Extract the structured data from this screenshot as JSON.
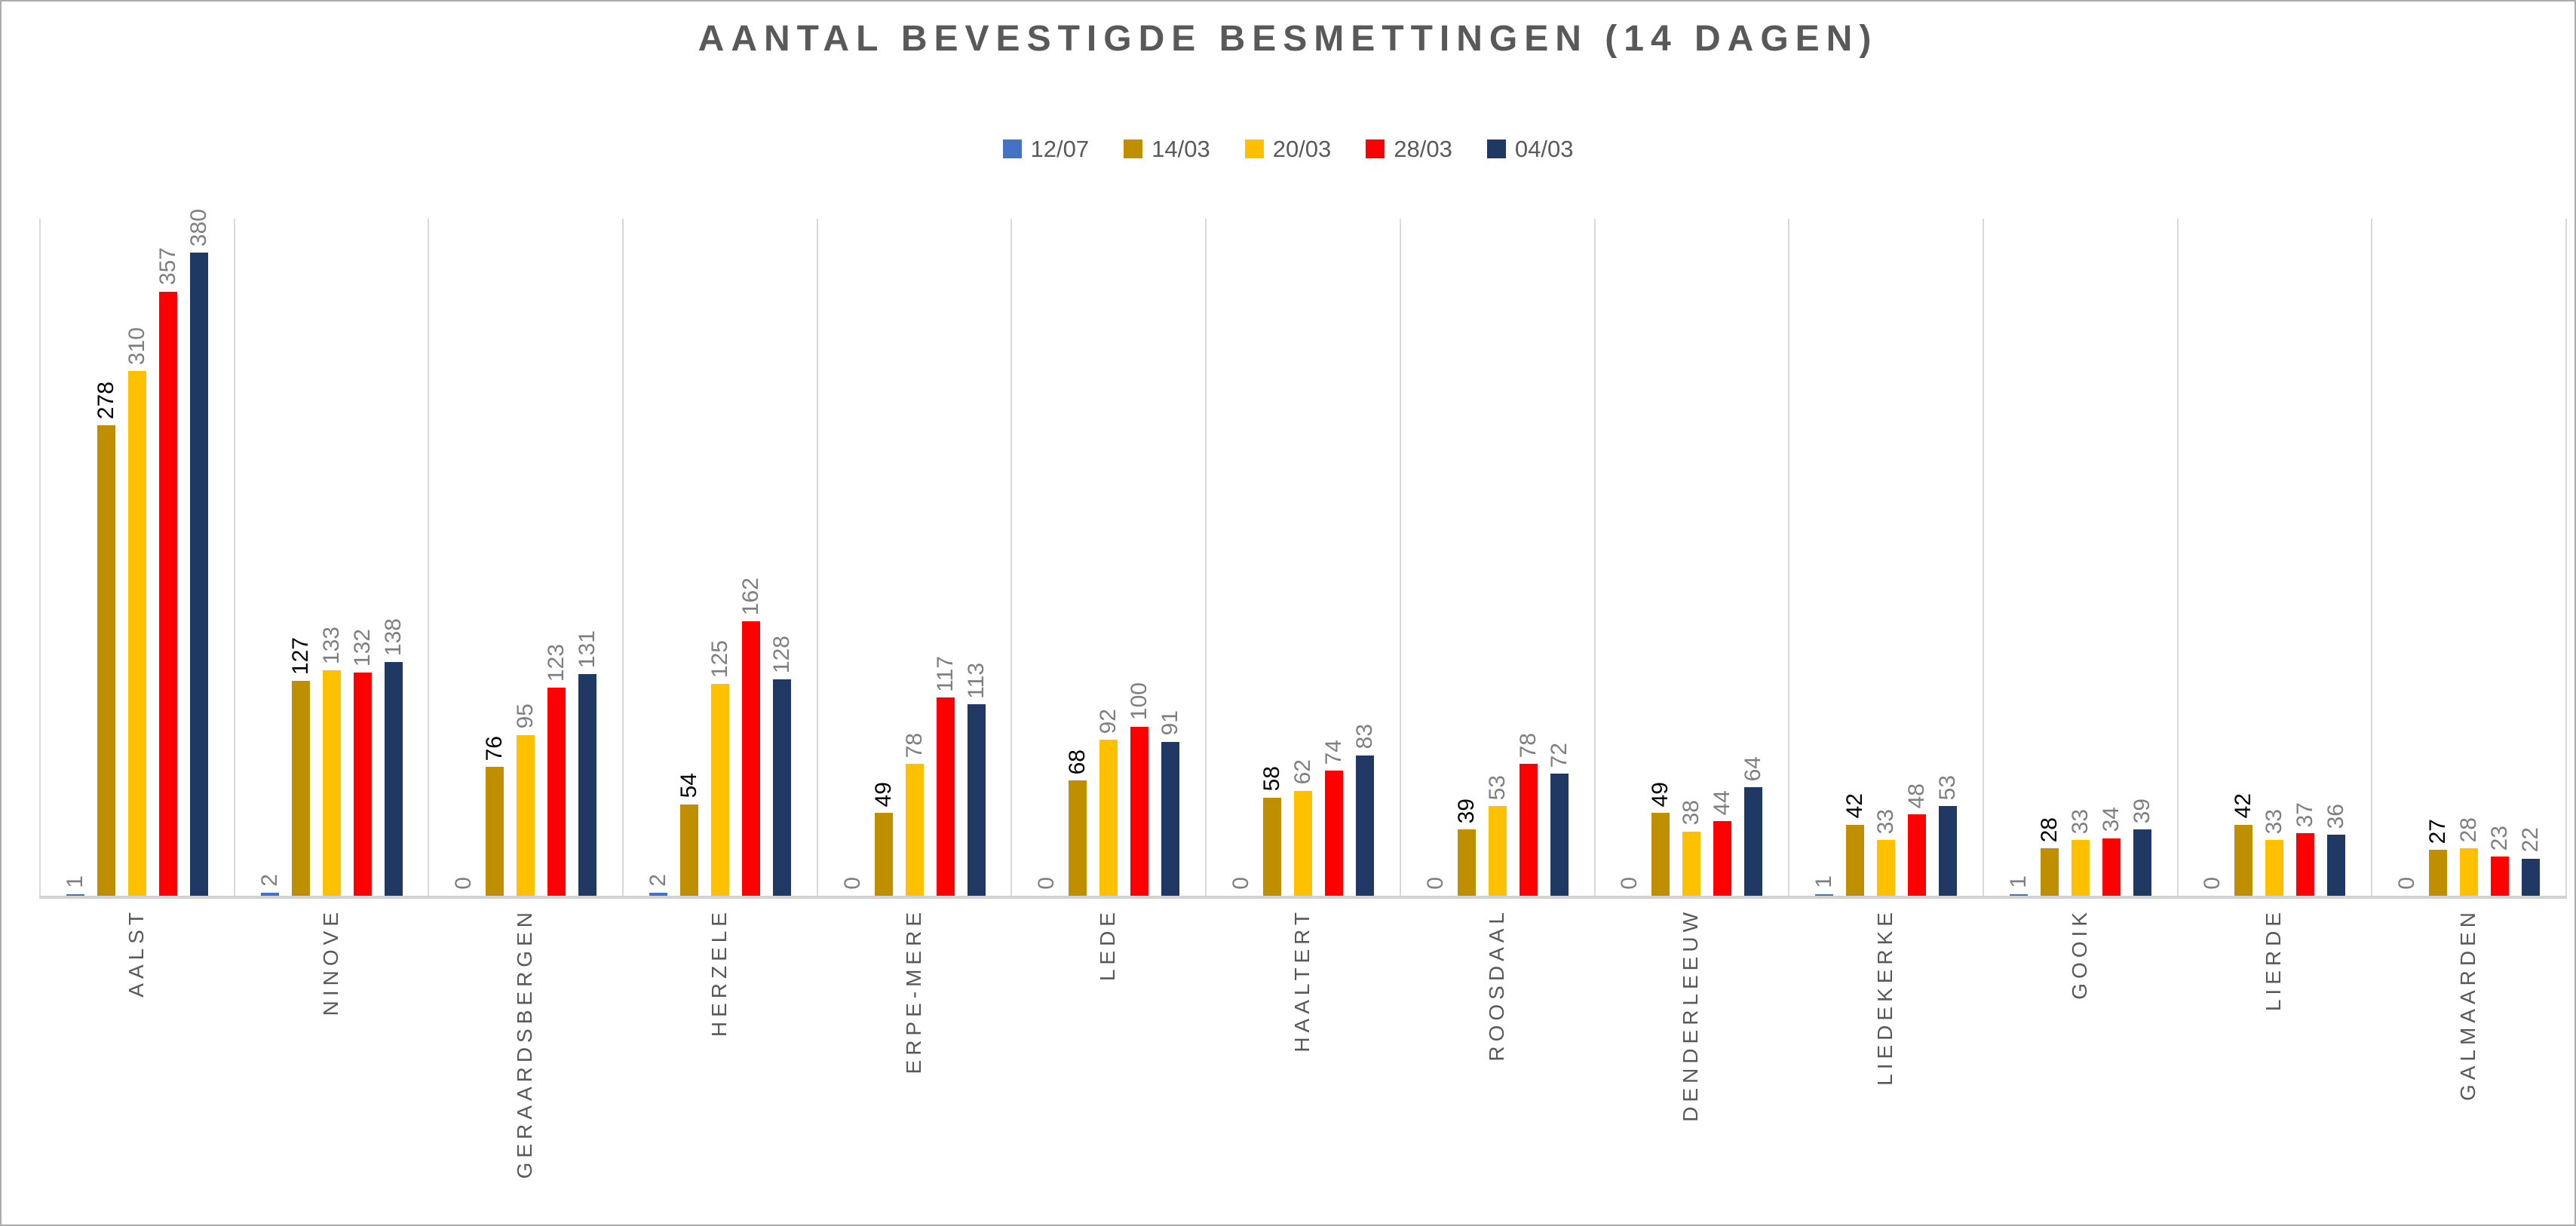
{
  "title": "AANTAL BEVESTIGDE BESMETTINGEN (14 DAGEN)",
  "chart_data": {
    "type": "bar",
    "title": "AANTAL BEVESTIGDE BESMETTINGEN (14 DAGEN)",
    "legend_position": "top",
    "grid": "vertical-category-separators-only",
    "value_labels": "rotated-270-above-bars",
    "category_labels": "rotated-270",
    "ylim": [
      0,
      400
    ],
    "ylabel": "",
    "xlabel": "",
    "categories": [
      "AALST",
      "NINOVE",
      "GERAARDSBERGEN",
      "HERZELE",
      "ERPE-MERE",
      "LEDE",
      "HAALTERT",
      "ROOSDAAL",
      "DENDERLEEUW",
      "LIEDEKERKE",
      "GOOIK",
      "LIERDE",
      "GALMAARDEN"
    ],
    "series": [
      {
        "name": "12/07",
        "color": "#4472C4",
        "label_color": "#7f7f7f",
        "values": [
          1,
          2,
          0,
          2,
          0,
          0,
          0,
          0,
          0,
          1,
          1,
          0,
          0
        ]
      },
      {
        "name": "14/03",
        "color": "#BF8F00",
        "label_color": "#000000",
        "values": [
          278,
          127,
          76,
          54,
          49,
          68,
          58,
          39,
          49,
          42,
          28,
          42,
          27
        ]
      },
      {
        "name": "20/03",
        "color": "#FFC000",
        "label_color": "#7f7f7f",
        "values": [
          310,
          133,
          95,
          125,
          78,
          92,
          62,
          53,
          38,
          33,
          33,
          33,
          28
        ]
      },
      {
        "name": "28/03",
        "color": "#FF0000",
        "label_color": "#7f7f7f",
        "values": [
          357,
          132,
          123,
          162,
          117,
          100,
          74,
          78,
          44,
          48,
          34,
          37,
          23
        ]
      },
      {
        "name": "04/03",
        "color": "#1F3864",
        "label_color": "#7f7f7f",
        "values": [
          380,
          138,
          131,
          128,
          113,
          91,
          83,
          72,
          64,
          53,
          39,
          36,
          22
        ]
      }
    ],
    "colors": {
      "gridline": "#d9d9d9",
      "axis_line": "#d2d2d2",
      "title_text": "#595959",
      "axis_text": "#595959",
      "value_label_text": "#7f7f7f"
    }
  }
}
